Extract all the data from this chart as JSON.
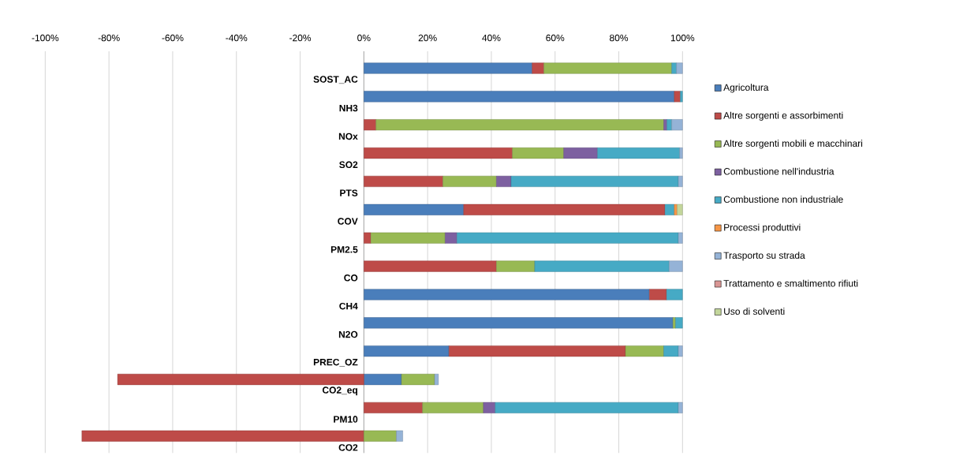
{
  "chart_data": {
    "type": "bar",
    "orientation": "horizontal",
    "stacked": true,
    "categories": [
      "SOST_AC",
      "NH3",
      "NOx",
      "SO2",
      "PTS",
      "COV",
      "PM2.5",
      "CO",
      "CH4",
      "N2O",
      "PREC_OZ",
      "CO2_eq",
      "PM10",
      "CO2"
    ],
    "series": [
      {
        "name": "Agricoltura",
        "color": "#4a7ebb",
        "values": [
          52.8,
          97.4,
          0,
          0,
          0,
          31.3,
          0,
          0,
          89.6,
          97.0,
          26.7,
          11.8,
          0,
          0
        ]
      },
      {
        "name": "Altre sorgenti e assorbimenti",
        "color": "#be4b48",
        "values": [
          3.7,
          1.9,
          3.8,
          46.6,
          24.8,
          63.2,
          2.2,
          41.6,
          5.4,
          0,
          55.4,
          -77.3,
          18.4,
          -88.5
        ]
      },
      {
        "name": "Altre sorgenti mobili e macchinari",
        "color": "#98b954",
        "values": [
          40.1,
          0,
          90.3,
          16.1,
          16.8,
          0,
          23.3,
          12.0,
          0,
          0.8,
          12.0,
          10.4,
          19.1,
          10.2
        ]
      },
      {
        "name": "Combustione nell'industria",
        "color": "#7d60a0",
        "values": [
          0,
          0,
          1.0,
          10.6,
          4.6,
          0,
          3.7,
          0,
          0,
          0,
          0,
          0,
          3.7,
          0
        ]
      },
      {
        "name": "Combustione non industriale",
        "color": "#46aac5",
        "values": [
          1.5,
          0.7,
          1.5,
          25.8,
          52.5,
          2.9,
          69.5,
          42.2,
          5.0,
          2.2,
          4.6,
          0,
          57.5,
          0
        ]
      },
      {
        "name": "Processi produttivi",
        "color": "#f79646",
        "values": [
          0,
          0,
          0,
          0,
          0,
          0.9,
          0,
          0,
          0,
          0,
          0,
          0,
          0,
          0
        ]
      },
      {
        "name": "Trasporto su strada",
        "color": "#95b3d7",
        "values": [
          1.9,
          0,
          3.4,
          0.9,
          1.3,
          0,
          1.3,
          4.2,
          0,
          0,
          1.3,
          1.2,
          1.3,
          2.0
        ]
      },
      {
        "name": "Trattamento e smaltimento rifiuti",
        "color": "#d99694",
        "values": [
          0,
          0,
          0,
          0,
          0,
          0,
          0,
          0,
          0,
          0,
          0,
          0,
          0,
          0
        ]
      },
      {
        "name": "Uso di solventi",
        "color": "#c3d69b",
        "values": [
          0,
          0,
          0,
          0,
          0,
          1.7,
          0,
          0,
          0,
          0,
          0,
          0,
          0,
          0
        ]
      }
    ],
    "xlim": [
      -100,
      100
    ],
    "xticks": [
      {
        "value": -100,
        "label": "-100%"
      },
      {
        "value": -80,
        "label": "-80%"
      },
      {
        "value": -60,
        "label": "-60%"
      },
      {
        "value": -40,
        "label": "-40%"
      },
      {
        "value": -20,
        "label": "-20%"
      },
      {
        "value": 0,
        "label": "0%"
      },
      {
        "value": 20,
        "label": "20%"
      },
      {
        "value": 40,
        "label": "40%"
      },
      {
        "value": 60,
        "label": "60%"
      },
      {
        "value": 80,
        "label": "80%"
      },
      {
        "value": 100,
        "label": "100%"
      }
    ],
    "grid": "x",
    "legend": "right"
  }
}
